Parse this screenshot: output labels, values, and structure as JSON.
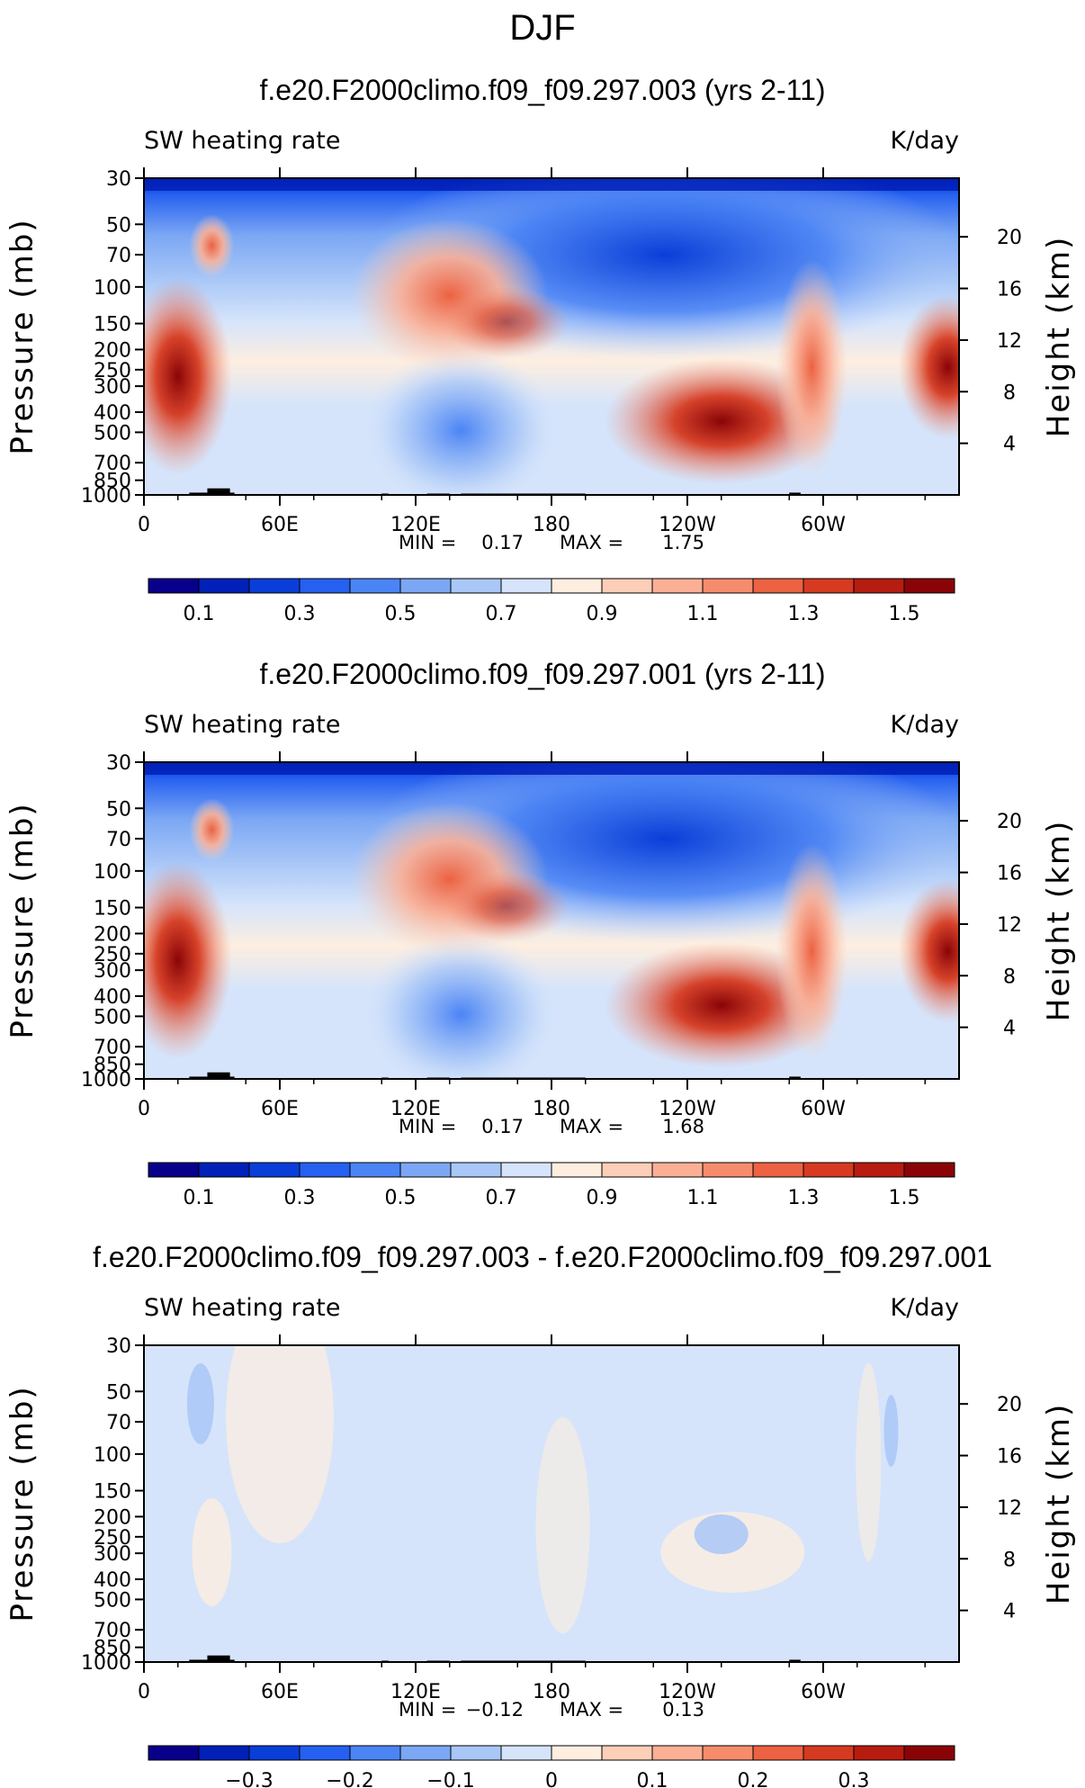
{
  "figure_title": "DJF",
  "chart_data": [
    {
      "type": "heatmap",
      "title": "f.e20.F2000climo.f09_f09.297.003 (yrs 2-11)",
      "left_label": "SW heating rate",
      "right_label": "K/day",
      "ylabel": "Pressure (mb)",
      "ylabel_right": "Height (km)",
      "xticks": [
        "0",
        "60E",
        "120E",
        "180",
        "120W",
        "60W"
      ],
      "xlim": [
        0,
        360
      ],
      "yticks": [
        "30",
        "50",
        "70",
        "100",
        "150",
        "200",
        "250",
        "300",
        "400",
        "500",
        "700",
        "850",
        "1000"
      ],
      "yticks_right": [
        "20",
        "16",
        "12",
        "8",
        "4"
      ],
      "ylim": [
        30,
        1000
      ],
      "log_scale_y": true,
      "stats": {
        "min": "0.17",
        "max": "1.75"
      },
      "min_label": "MIN =",
      "max_label": "MAX =",
      "colorbar": {
        "labels": [
          "0.1",
          "0.3",
          "0.5",
          "0.7",
          "0.9",
          "1.1",
          "1.3",
          "1.5"
        ],
        "colors": [
          "#08008a",
          "#0020b8",
          "#0a3ed8",
          "#2560f0",
          "#4b84f5",
          "#7ba7f4",
          "#a9c7f7",
          "#d5e4fb",
          "#fdeee0",
          "#fdcfb8",
          "#fbb096",
          "#f68c6c",
          "#ec6242",
          "#d63a20",
          "#b71c10",
          "#8a0407"
        ]
      }
    },
    {
      "type": "heatmap",
      "title": "f.e20.F2000climo.f09_f09.297.001 (yrs 2-11)",
      "left_label": "SW heating rate",
      "right_label": "K/day",
      "ylabel": "Pressure (mb)",
      "ylabel_right": "Height (km)",
      "xticks": [
        "0",
        "60E",
        "120E",
        "180",
        "120W",
        "60W"
      ],
      "xlim": [
        0,
        360
      ],
      "yticks": [
        "30",
        "50",
        "70",
        "100",
        "150",
        "200",
        "250",
        "300",
        "400",
        "500",
        "700",
        "850",
        "1000"
      ],
      "yticks_right": [
        "20",
        "16",
        "12",
        "8",
        "4"
      ],
      "ylim": [
        30,
        1000
      ],
      "log_scale_y": true,
      "stats": {
        "min": "0.17",
        "max": "1.68"
      },
      "min_label": "MIN =",
      "max_label": "MAX =",
      "colorbar": {
        "labels": [
          "0.1",
          "0.3",
          "0.5",
          "0.7",
          "0.9",
          "1.1",
          "1.3",
          "1.5"
        ],
        "colors": [
          "#08008a",
          "#0020b8",
          "#0a3ed8",
          "#2560f0",
          "#4b84f5",
          "#7ba7f4",
          "#a9c7f7",
          "#d5e4fb",
          "#fdeee0",
          "#fdcfb8",
          "#fbb096",
          "#f68c6c",
          "#ec6242",
          "#d63a20",
          "#b71c10",
          "#8a0407"
        ]
      }
    },
    {
      "type": "heatmap",
      "title": "f.e20.F2000climo.f09_f09.297.003 - f.e20.F2000climo.f09_f09.297.001",
      "left_label": "SW heating rate",
      "right_label": "K/day",
      "ylabel": "Pressure (mb)",
      "ylabel_right": "Height (km)",
      "xticks": [
        "0",
        "60E",
        "120E",
        "180",
        "120W",
        "60W"
      ],
      "xlim": [
        0,
        360
      ],
      "yticks": [
        "30",
        "50",
        "70",
        "100",
        "150",
        "200",
        "250",
        "300",
        "400",
        "500",
        "700",
        "850",
        "1000"
      ],
      "yticks_right": [
        "20",
        "16",
        "12",
        "8",
        "4"
      ],
      "ylim": [
        30,
        1000
      ],
      "log_scale_y": true,
      "stats": {
        "min": "−0.12",
        "max": "0.13"
      },
      "min_label": "MIN =",
      "max_label": "MAX =",
      "colorbar": {
        "labels": [
          "−0.3",
          "−0.2",
          "−0.1",
          "0",
          "0.1",
          "0.2",
          "0.3"
        ],
        "colors": [
          "#08008a",
          "#0020b8",
          "#0a3ed8",
          "#2560f0",
          "#4b84f5",
          "#7ba7f4",
          "#a9c7f7",
          "#d5e4fb",
          "#fdeee0",
          "#fdcfb8",
          "#fbb096",
          "#f68c6c",
          "#ec6242",
          "#d63a20",
          "#b71c10",
          "#8a0407"
        ]
      }
    }
  ]
}
